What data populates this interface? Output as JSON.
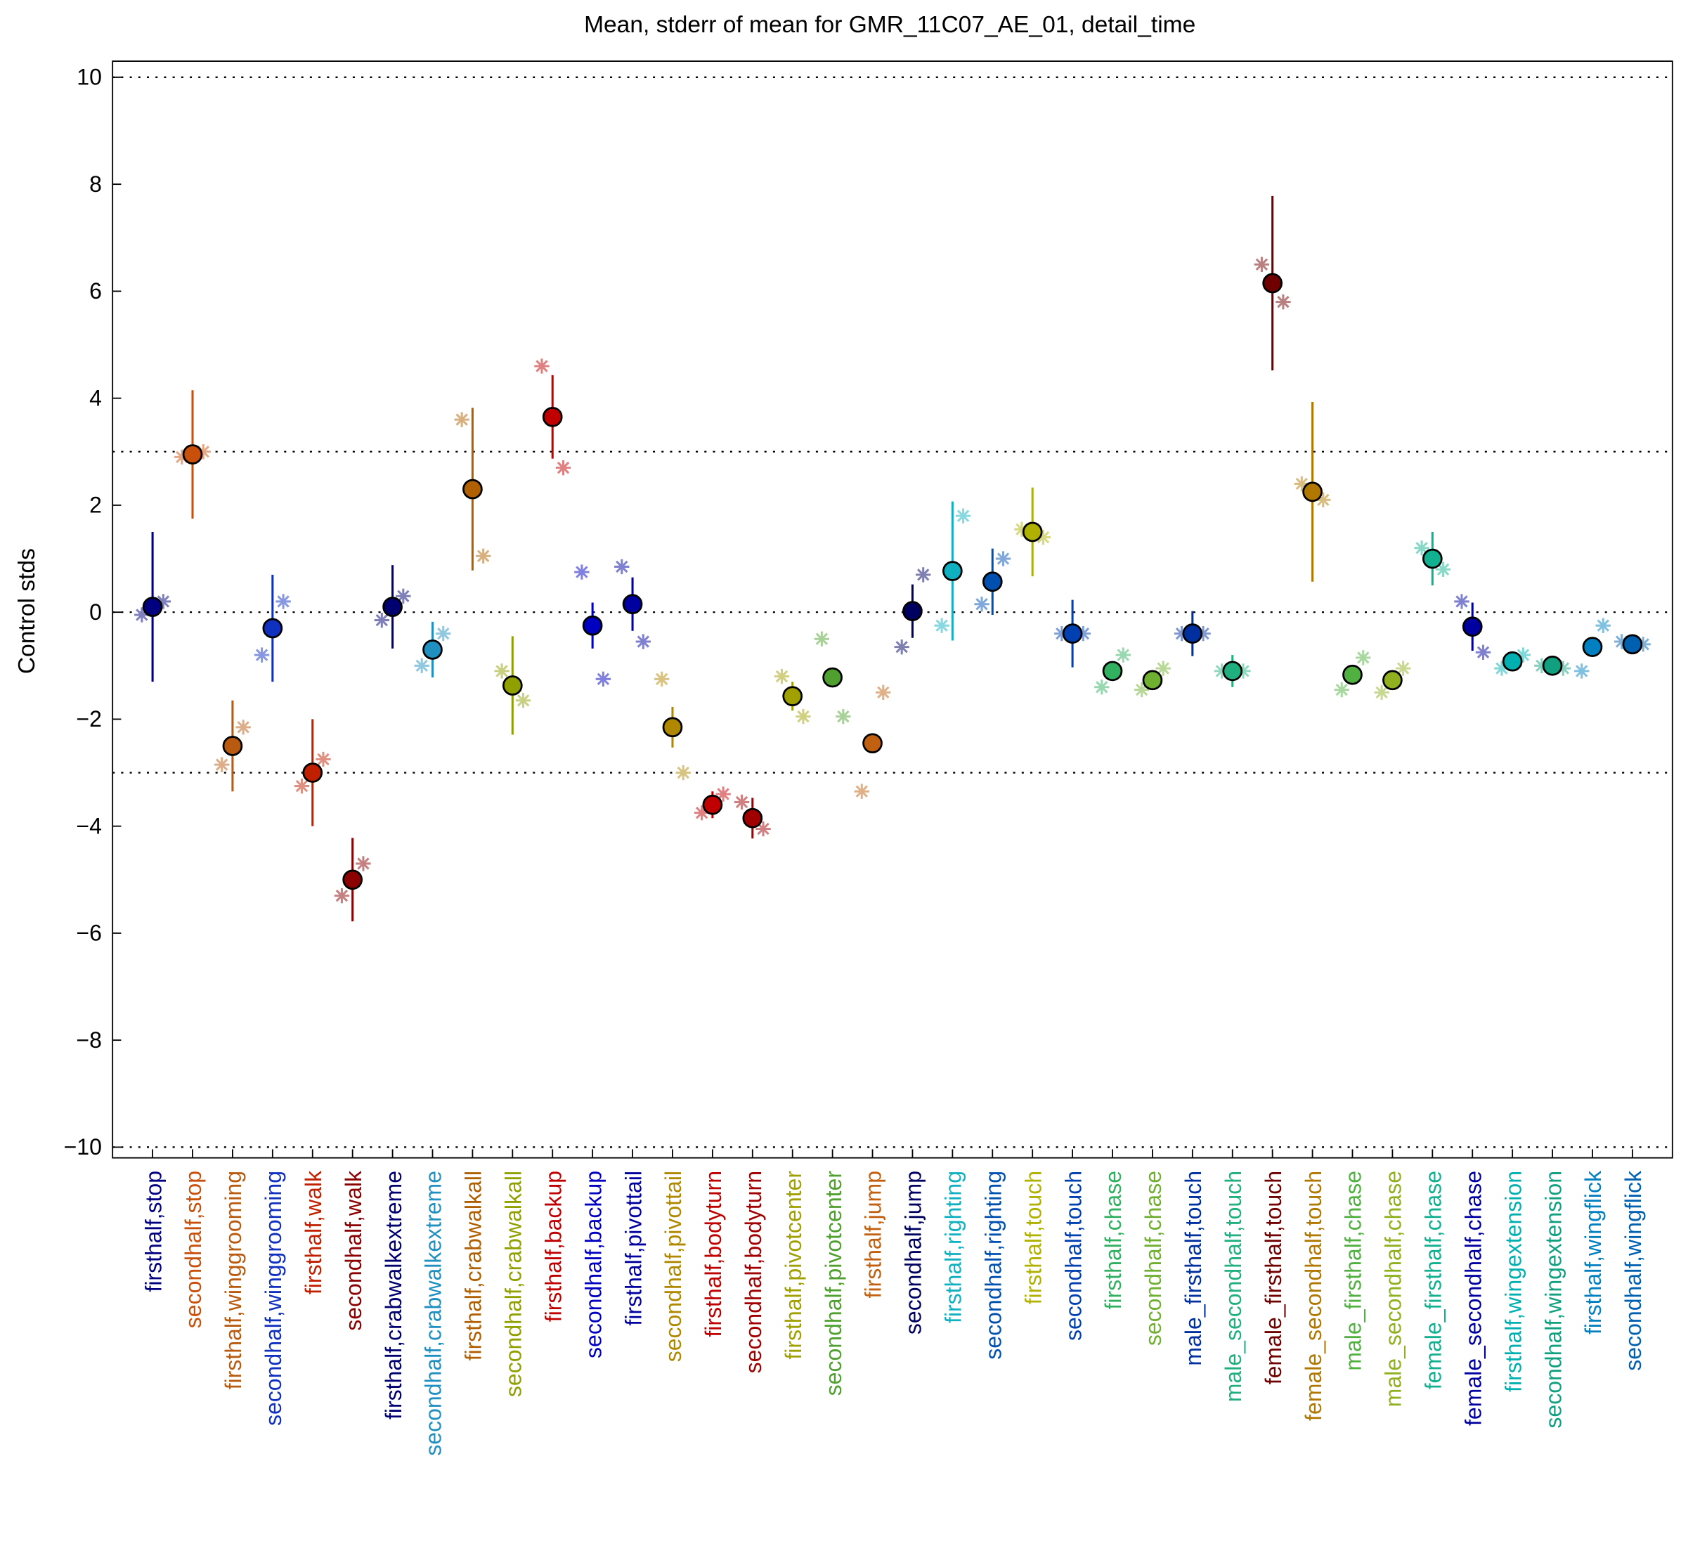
{
  "chart_data": {
    "type": "errorbar",
    "title": "Mean, stderr of mean for GMR_11C07_AE_01, detail_time",
    "ylabel": "Control stds",
    "categories": [
      "firsthalf,stop",
      "secondhalf,stop",
      "firsthalf,winggrooming",
      "secondhalf,winggrooming",
      "firsthalf,walk",
      "secondhalf,walk",
      "firsthalf,crabwalkextreme",
      "secondhalf,crabwalkextreme",
      "firsthalf,crabwalkall",
      "secondhalf,crabwalkall",
      "firsthalf,backup",
      "secondhalf,backup",
      "firsthalf,pivottail",
      "secondhalf,pivottail",
      "firsthalf,bodyturn",
      "secondhalf,bodyturn",
      "firsthalf,pivotcenter",
      "secondhalf,pivotcenter",
      "firsthalf,jump",
      "secondhalf,jump",
      "firsthalf,righting",
      "secondhalf,righting",
      "firsthalf,touch",
      "secondhalf,touch",
      "firsthalf,chase",
      "secondhalf,chase",
      "male_firsthalf,touch",
      "male_secondhalf,touch",
      "female_firsthalf,touch",
      "female_secondhalf,touch",
      "male_firsthalf,chase",
      "male_secondhalf,chase",
      "female_firsthalf,chase",
      "female_secondhalf,chase",
      "firsthalf,wingextension",
      "secondhalf,wingextension",
      "firsthalf,wingflick",
      "secondhalf,wingflick"
    ],
    "colors": [
      "#000080",
      "#c8500a",
      "#b85a10",
      "#1030c0",
      "#c02000",
      "#8b0000",
      "#000070",
      "#2090c0",
      "#b06000",
      "#90a000",
      "#c00000",
      "#0000c0",
      "#0000a0",
      "#b08800",
      "#c00000",
      "#a00000",
      "#a0a000",
      "#50a030",
      "#c06010",
      "#000060",
      "#10b0c0",
      "#0050b0",
      "#b0b000",
      "#0040b0",
      "#30b060",
      "#70b030",
      "#0030a0",
      "#20b080",
      "#700000",
      "#b07800",
      "#50b040",
      "#90b020",
      "#10b090",
      "#0000a0",
      "#00b0b0",
      "#10a080",
      "#0080c0",
      "#0060b0"
    ],
    "means": [
      0.1,
      2.95,
      -2.5,
      -0.3,
      -3.0,
      -5.0,
      0.1,
      -0.7,
      2.3,
      -1.37,
      3.65,
      -0.25,
      0.15,
      -2.15,
      -3.6,
      -3.85,
      -1.57,
      -1.22,
      -2.45,
      0.02,
      0.77,
      0.57,
      1.5,
      -0.4,
      -1.1,
      -1.27,
      -0.4,
      -1.1,
      6.15,
      2.25,
      -1.17,
      -1.27,
      1.0,
      -0.27,
      -0.92,
      -1.0,
      -0.65,
      -0.6
    ],
    "errors": [
      1.4,
      1.2,
      0.85,
      1.0,
      1.0,
      0.78,
      0.78,
      0.52,
      1.52,
      0.92,
      0.78,
      0.43,
      0.5,
      0.38,
      0.25,
      0.38,
      0.27,
      0.05,
      0.05,
      0.5,
      1.3,
      0.62,
      0.83,
      0.63,
      0.05,
      0.05,
      0.42,
      0.3,
      1.63,
      1.68,
      0.05,
      0.05,
      0.5,
      0.45,
      0.05,
      0.05,
      0.05,
      0.05
    ],
    "stars_left": [
      -0.05,
      2.9,
      -2.85,
      -0.8,
      -3.25,
      -5.3,
      -0.15,
      -1.0,
      3.6,
      -1.1,
      4.6,
      0.75,
      0.85,
      -1.25,
      -3.75,
      -3.55,
      -1.2,
      -0.5,
      -3.35,
      -0.65,
      -0.25,
      0.15,
      1.55,
      -0.4,
      -1.4,
      -1.45,
      -0.4,
      -1.1,
      6.5,
      2.4,
      -1.45,
      -1.5,
      1.2,
      0.2,
      -1.05,
      -1.0,
      -1.1,
      -0.55
    ],
    "stars_right": [
      0.2,
      3.0,
      -2.15,
      0.2,
      -2.75,
      -4.7,
      0.3,
      -0.4,
      1.05,
      -1.65,
      2.7,
      -1.25,
      -0.55,
      -3.0,
      -3.4,
      -4.05,
      -1.95,
      -1.95,
      -1.5,
      0.7,
      1.8,
      1.0,
      1.4,
      -0.4,
      -0.8,
      -1.05,
      -0.4,
      -1.1,
      5.8,
      2.1,
      -0.85,
      -1.05,
      0.8,
      -0.75,
      -0.8,
      -1.05,
      -0.25,
      -0.6
    ],
    "reference_lines": [
      10,
      3,
      0,
      -3,
      -10
    ],
    "ylim": [
      -10.2,
      10.3
    ],
    "yticks": [
      {
        "value": -10,
        "label": "−10"
      },
      {
        "value": -8,
        "label": "−8"
      },
      {
        "value": -6,
        "label": "−6"
      },
      {
        "value": -4,
        "label": "−4"
      },
      {
        "value": -2,
        "label": "−2"
      },
      0,
      2,
      4,
      6,
      8,
      10
    ]
  }
}
